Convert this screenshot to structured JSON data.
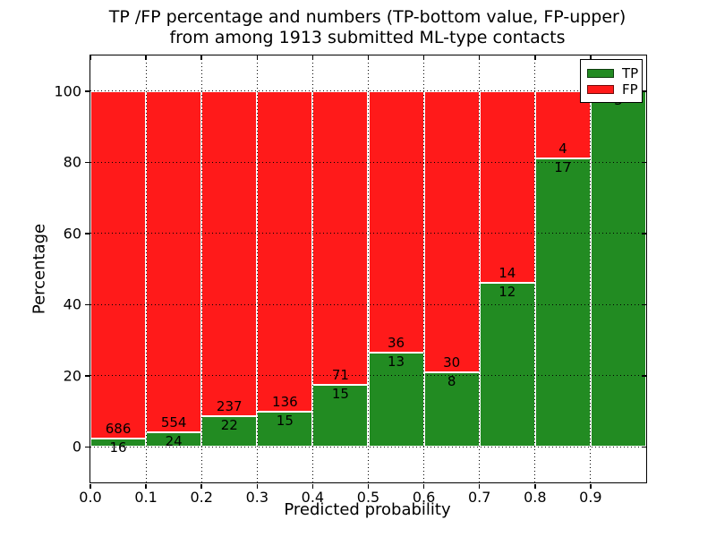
{
  "title": {
    "line1": "TP /FP percentage and numbers (TP-bottom value, FP-upper)",
    "line2": "from among 1913 submitted ML-type contacts"
  },
  "axes": {
    "xlabel": "Predicted probability",
    "ylabel": "Percentage",
    "x_ticks": [
      "0.0",
      "0.1",
      "0.2",
      "0.3",
      "0.4",
      "0.5",
      "0.6",
      "0.7",
      "0.8",
      "0.9"
    ],
    "y_ticks": [
      "0",
      "20",
      "40",
      "60",
      "80",
      "100"
    ]
  },
  "legend": {
    "items": [
      {
        "label": "TP",
        "color": "#228b22"
      },
      {
        "label": "FP",
        "color": "#ff1a1a"
      }
    ],
    "position": "upper right"
  },
  "colors": {
    "tp_green": "#228b22",
    "fp_red": "#ff1a1a",
    "grid": "#000000",
    "bar_edge": "#ffffff"
  },
  "chart_data": {
    "type": "bar",
    "stacked": true,
    "normalized_to_percent": true,
    "total_contacts": 1913,
    "categories": [
      "0.0-0.1",
      "0.1-0.2",
      "0.2-0.3",
      "0.3-0.4",
      "0.4-0.5",
      "0.5-0.6",
      "0.6-0.7",
      "0.7-0.8",
      "0.8-0.9",
      "0.9-1.0"
    ],
    "series": [
      {
        "name": "TP",
        "color": "#228b22",
        "counts": [
          16,
          24,
          22,
          15,
          15,
          13,
          8,
          12,
          17,
          3
        ],
        "percent": [
          2.3,
          4.2,
          8.5,
          9.9,
          17.4,
          26.5,
          21.1,
          46.2,
          81.0,
          100.0
        ]
      },
      {
        "name": "FP",
        "color": "#ff1a1a",
        "counts": [
          686,
          554,
          237,
          136,
          71,
          36,
          30,
          14,
          4,
          0
        ],
        "percent": [
          97.7,
          95.8,
          91.5,
          90.1,
          82.6,
          73.5,
          78.9,
          53.8,
          19.0,
          0.0
        ]
      }
    ],
    "bar_labels_note": "TP count printed below green top edge, FP count above it",
    "title": "TP /FP percentage and numbers (TP-bottom value, FP-upper) from among 1913 submitted ML-type contacts",
    "xlabel": "Predicted probability",
    "ylabel": "Percentage",
    "xlim": [
      0.0,
      1.0
    ],
    "ylim": [
      -10,
      110
    ],
    "grid": "dotted",
    "legend_position": "upper right"
  }
}
